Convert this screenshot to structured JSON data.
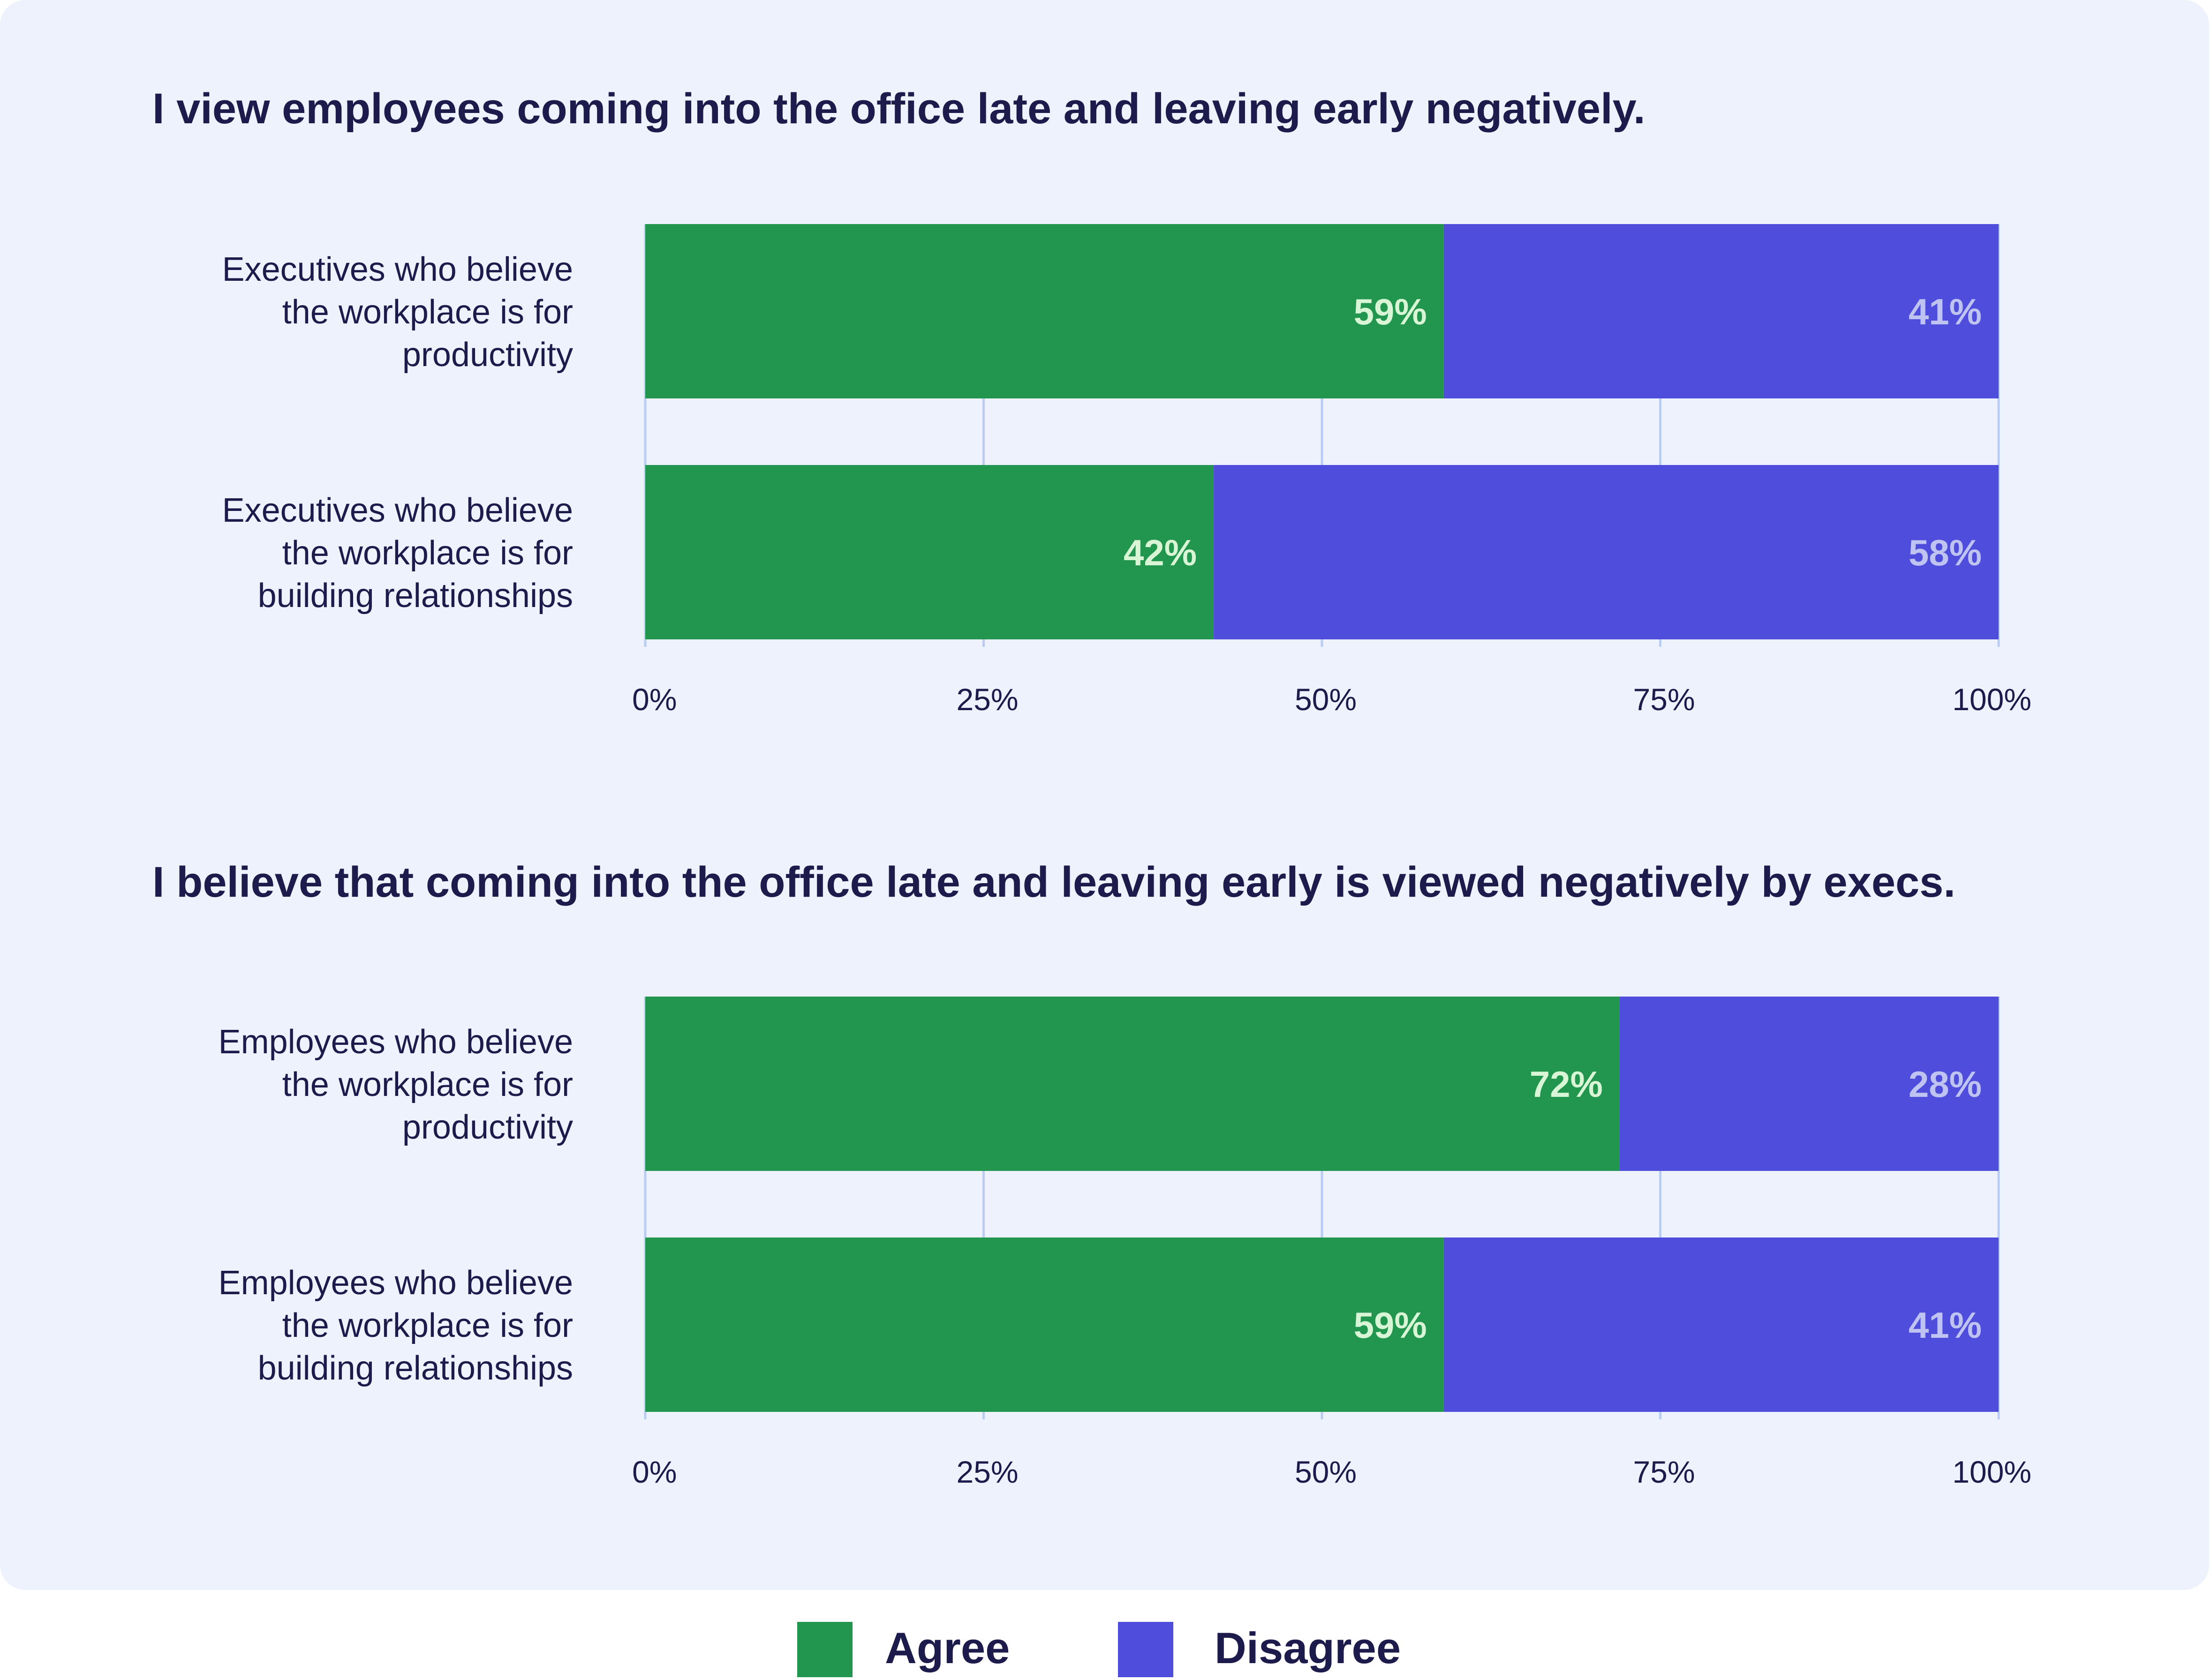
{
  "colors": {
    "agree": "#22954e",
    "disagree": "#4f4edc",
    "agree_label": "#d8f5d5",
    "disagree_label": "#bfc3f2",
    "grid": "#b9ccf3",
    "text": "#1d1b4c"
  },
  "legend": {
    "agree": "Agree",
    "disagree": "Disagree"
  },
  "chart_data": [
    {
      "type": "bar",
      "orientation": "horizontal",
      "stacked": true,
      "title": "I view employees coming into the office late and leaving early negatively.",
      "categories": [
        [
          "Executives who believe",
          "the workplace is for",
          "productivity"
        ],
        [
          "Executives who believe",
          "the workplace is for",
          "building relationships"
        ]
      ],
      "series": [
        {
          "name": "Agree",
          "values": [
            59,
            42
          ],
          "labels": [
            "59%",
            "42%"
          ]
        },
        {
          "name": "Disagree",
          "values": [
            41,
            58
          ],
          "labels": [
            "41%",
            "58%"
          ]
        }
      ],
      "xlim": [
        0,
        100
      ],
      "ticks": [
        0,
        25,
        50,
        75,
        100
      ],
      "tick_labels": [
        "0%",
        "25%",
        "50%",
        "75%",
        "100%"
      ]
    },
    {
      "type": "bar",
      "orientation": "horizontal",
      "stacked": true,
      "title": "I believe that coming into the office late and leaving early is viewed negatively by execs.",
      "categories": [
        [
          "Employees who believe",
          "the workplace is for",
          "productivity"
        ],
        [
          "Employees who believe",
          "the workplace is for",
          "building relationships"
        ]
      ],
      "series": [
        {
          "name": "Agree",
          "values": [
            72,
            59
          ],
          "labels": [
            "72%",
            "59%"
          ]
        },
        {
          "name": "Disagree",
          "values": [
            28,
            41
          ],
          "labels": [
            "28%",
            "41%"
          ]
        }
      ],
      "xlim": [
        0,
        100
      ],
      "ticks": [
        0,
        25,
        50,
        75,
        100
      ],
      "tick_labels": [
        "0%",
        "25%",
        "50%",
        "75%",
        "100%"
      ]
    }
  ]
}
